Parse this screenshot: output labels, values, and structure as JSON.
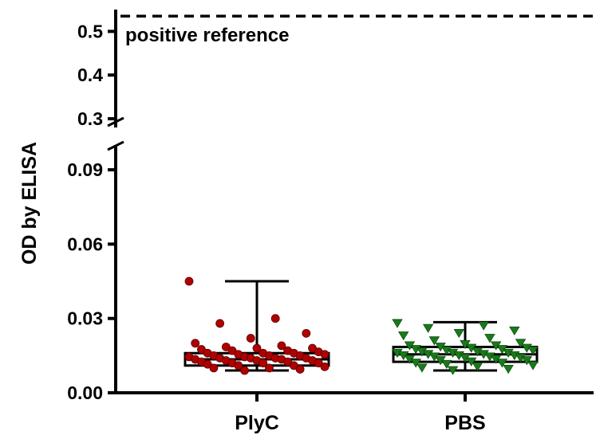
{
  "chart_data": {
    "type": "box",
    "ylabel": "OD by  ELISA",
    "y_axis_break": [
      0.1,
      0.28
    ],
    "ylim_lower": [
      0,
      0.1
    ],
    "ylim_upper": [
      0.28,
      0.55
    ],
    "yticks_lower": [
      "0.00",
      "0.03",
      "0.06",
      "0.09"
    ],
    "yticks_upper": [
      "0.3",
      "0.4",
      "0.5"
    ],
    "categories": [
      "PlyC",
      "PBS"
    ],
    "series": [
      {
        "name": "PlyC",
        "color": "#b00000",
        "marker": "circle",
        "min": 0.009,
        "q1": 0.011,
        "median": 0.0135,
        "q3": 0.016,
        "max": 0.045,
        "points": [
          0.045,
          0.03,
          0.028,
          0.024,
          0.022,
          0.02,
          0.019,
          0.0185,
          0.018,
          0.018,
          0.0175,
          0.017,
          0.017,
          0.0165,
          0.016,
          0.016,
          0.016,
          0.0155,
          0.0155,
          0.015,
          0.015,
          0.015,
          0.0145,
          0.0145,
          0.014,
          0.014,
          0.014,
          0.014,
          0.0135,
          0.0135,
          0.013,
          0.013,
          0.013,
          0.0125,
          0.0125,
          0.012,
          0.012,
          0.012,
          0.0115,
          0.011,
          0.011,
          0.0105,
          0.01,
          0.01,
          0.0095,
          0.009
        ]
      },
      {
        "name": "PBS",
        "color": "#1a7a1a",
        "marker": "triangle-down",
        "min": 0.009,
        "q1": 0.0125,
        "median": 0.0155,
        "q3": 0.0185,
        "max": 0.0285,
        "points": [
          0.028,
          0.027,
          0.026,
          0.025,
          0.024,
          0.023,
          0.022,
          0.021,
          0.02,
          0.0195,
          0.019,
          0.019,
          0.0185,
          0.018,
          0.018,
          0.0175,
          0.0175,
          0.017,
          0.017,
          0.0165,
          0.0165,
          0.016,
          0.016,
          0.016,
          0.0155,
          0.0155,
          0.015,
          0.015,
          0.015,
          0.0145,
          0.0145,
          0.014,
          0.014,
          0.0135,
          0.0135,
          0.013,
          0.013,
          0.0125,
          0.012,
          0.012,
          0.0115,
          0.011,
          0.0105,
          0.01,
          0.0095,
          0.009
        ]
      }
    ],
    "reference_line": {
      "value": 0.535,
      "label": "positive reference",
      "style": "dashed"
    }
  }
}
